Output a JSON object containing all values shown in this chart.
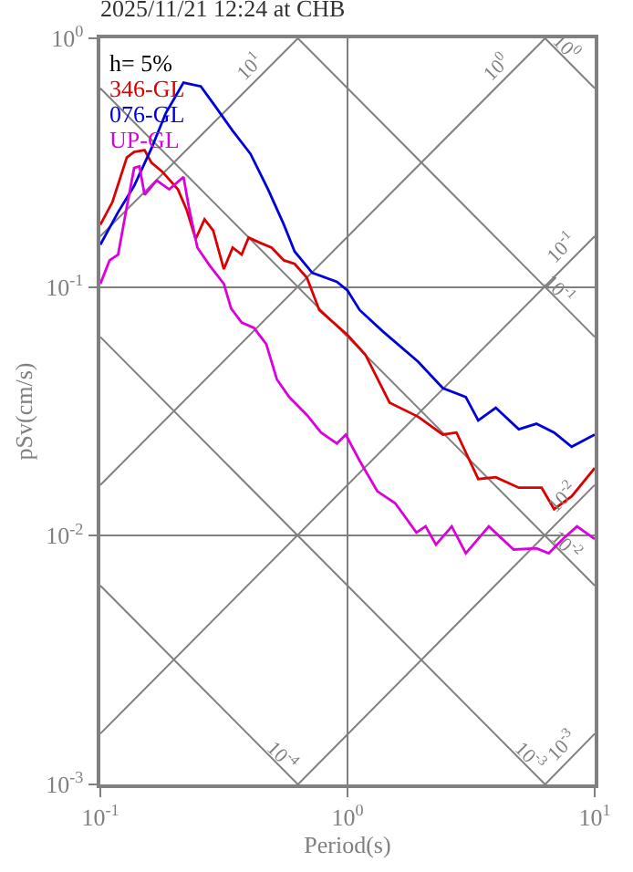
{
  "chart_data": {
    "type": "line",
    "title": "2025/11/21 12:24 at CHB",
    "xlabel": "Period(s)",
    "ylabel": "pSv(cm/s)",
    "log": "xy",
    "grid": true,
    "legend": "top left",
    "xlim": [
      0.1,
      10
    ],
    "ylim": [
      0.001,
      1
    ],
    "xticks": [
      {
        "value": 0.1,
        "label": "10$^{-1}$"
      },
      {
        "value": 1,
        "label": "10$^{0}$"
      },
      {
        "value": 10,
        "label": "10$^{1}$"
      }
    ],
    "yticks": [
      {
        "value": 0.001,
        "label": "10$^{-3}$"
      },
      {
        "value": 0.01,
        "label": "10$^{-2}$"
      },
      {
        "value": 0.1,
        "label": "10$^{-1}$"
      },
      {
        "value": 1,
        "label": "10$^{0}$"
      }
    ],
    "series": [
      {
        "type": "line",
        "color": "#808080",
        "x": [
          0.1,
          0.63
        ],
        "values": [
          0.0063,
          0.001
        ]
      },
      {
        "type": "line",
        "color": "#808080",
        "x": [
          0.1,
          6.3
        ],
        "values": [
          0.063,
          0.001
        ]
      },
      {
        "type": "line",
        "color": "#808080",
        "x": [
          0.1,
          10
        ],
        "values": [
          0.63,
          0.0063
        ]
      },
      {
        "type": "line",
        "color": "#808080",
        "x": [
          0.63,
          10
        ],
        "values": [
          1,
          0.063
        ]
      },
      {
        "type": "line",
        "color": "#808080",
        "x": [
          6.3,
          10
        ],
        "values": [
          1,
          0.63
        ]
      },
      {
        "type": "line",
        "color": "#808080",
        "x": [
          6.3,
          10
        ],
        "values": [
          0.001,
          0.0016
        ]
      },
      {
        "type": "line",
        "color": "#808080",
        "x": [
          0.63,
          10
        ],
        "values": [
          0.001,
          0.016
        ]
      },
      {
        "type": "line",
        "color": "#808080",
        "x": [
          0.1,
          10
        ],
        "values": [
          0.0016,
          0.16
        ]
      },
      {
        "type": "line",
        "color": "#808080",
        "x": [
          0.1,
          6.3
        ],
        "values": [
          0.016,
          1
        ]
      },
      {
        "type": "line",
        "color": "#808080",
        "x": [
          0.1,
          0.63
        ],
        "values": [
          0.16,
          1
        ]
      },
      {
        "name": "346-GL",
        "color": "#dd0000",
        "x": [
          0.1,
          0.112,
          0.128,
          0.137,
          0.151,
          0.161,
          0.178,
          0.206,
          0.224,
          0.243,
          0.264,
          0.286,
          0.316,
          0.343,
          0.373,
          0.398,
          0.44,
          0.493,
          0.553,
          0.611,
          0.685,
          0.769,
          1.0,
          1.18,
          1.48,
          1.93,
          2.43,
          2.76,
          3.38,
          3.98,
          4.93,
          6.1,
          6.85,
          8.07,
          10
        ],
        "values": [
          0.178,
          0.22,
          0.332,
          0.349,
          0.355,
          0.316,
          0.291,
          0.247,
          0.203,
          0.156,
          0.187,
          0.169,
          0.118,
          0.144,
          0.135,
          0.158,
          0.151,
          0.144,
          0.128,
          0.124,
          0.109,
          0.0808,
          0.0642,
          0.0535,
          0.0343,
          0.0301,
          0.0255,
          0.026,
          0.0169,
          0.0172,
          0.0156,
          0.0156,
          0.0128,
          0.0144,
          0.0187
        ]
      },
      {
        "name": "076-GL",
        "color": "#0000dd",
        "x": [
          0.1,
          0.118,
          0.137,
          0.161,
          0.184,
          0.217,
          0.255,
          0.291,
          0.343,
          0.405,
          0.477,
          0.553,
          0.611,
          0.72,
          0.906,
          1.0,
          1.12,
          1.39,
          1.93,
          2.43,
          3.01,
          3.38,
          3.98,
          4.93,
          5.81,
          6.85,
          8.07,
          10
        ],
        "values": [
          0.148,
          0.2,
          0.255,
          0.361,
          0.5,
          0.663,
          0.641,
          0.535,
          0.425,
          0.343,
          0.247,
          0.178,
          0.139,
          0.114,
          0.105,
          0.0968,
          0.0808,
          0.0663,
          0.0501,
          0.0392,
          0.0361,
          0.0291,
          0.0327,
          0.0268,
          0.0282,
          0.026,
          0.0228,
          0.0255
        ]
      },
      {
        "name": "UP-GL",
        "color": "#dd00dd",
        "x": [
          0.1,
          0.109,
          0.118,
          0.128,
          0.137,
          0.144,
          0.151,
          0.169,
          0.19,
          0.217,
          0.228,
          0.247,
          0.277,
          0.316,
          0.338,
          0.373,
          0.418,
          0.469,
          0.518,
          0.581,
          0.685,
          0.781,
          0.906,
          0.984,
          1.12,
          1.32,
          1.56,
          1.9,
          2.07,
          2.28,
          2.64,
          3.01,
          3.73,
          4.7,
          5.81,
          6.52,
          7.43,
          8.48,
          10
        ],
        "values": [
          0.103,
          0.128,
          0.135,
          0.21,
          0.301,
          0.306,
          0.235,
          0.268,
          0.247,
          0.277,
          0.21,
          0.144,
          0.122,
          0.103,
          0.082,
          0.072,
          0.0685,
          0.059,
          0.0425,
          0.0361,
          0.0306,
          0.026,
          0.0235,
          0.0255,
          0.02,
          0.0151,
          0.0135,
          0.0103,
          0.0109,
          0.0092,
          0.0109,
          0.0085,
          0.0109,
          0.0088,
          0.0089,
          0.0085,
          0.0097,
          0.0109,
          0.0097
        ]
      }
    ],
    "annotations": [
      "h= 5%",
      {
        "text": "10$^{1}$",
        "x": 0.44,
        "y": 0.7
      },
      {
        "text": "10$^{0}$",
        "x": 4.4,
        "y": 0.7
      },
      {
        "text": "10$^{0}$",
        "x": 8.1,
        "y": 0.78
      },
      {
        "text": "10$^{-1}$",
        "x": 8.1,
        "y": 0.13
      },
      {
        "text": "10$^{-1}$",
        "x": 7.6,
        "y": 0.083
      },
      {
        "text": "10$^{-2}$",
        "x": 8.1,
        "y": 0.013
      },
      {
        "text": "10$^{-2}$",
        "x": 8.1,
        "y": 0.0078
      },
      {
        "text": "10$^{-4}$",
        "x": 0.58,
        "y": 0.0011
      },
      {
        "text": "10$^{-3}$",
        "x": 5.8,
        "y": 0.0011
      },
      {
        "text": "10$^{-3}$",
        "x": 8.1,
        "y": 0.0013
      }
    ]
  }
}
